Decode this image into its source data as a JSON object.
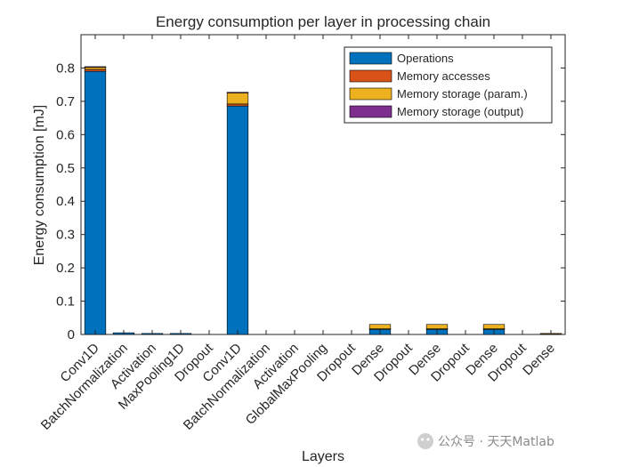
{
  "chart_data": {
    "type": "bar",
    "stacked": true,
    "title": "Energy consumption per layer in processing chain",
    "xlabel": "Layers",
    "ylabel": "Energy consumption [mJ]",
    "ylim": [
      0,
      0.9
    ],
    "yticks": [
      0,
      0.1,
      0.2,
      0.3,
      0.4,
      0.5,
      0.6,
      0.7,
      0.8
    ],
    "ytick_labels": [
      "0",
      "0.1",
      "0.2",
      "0.3",
      "0.4",
      "0.5",
      "0.6",
      "0.7",
      "0.8"
    ],
    "grid": false,
    "legend_position": "top-right",
    "categories": [
      "Conv1D",
      "BatchNormalization",
      "Activation",
      "MaxPooling1D",
      "Dropout",
      "Conv1D",
      "BatchNormalization",
      "Activation",
      "GlobalMaxPooling",
      "Dropout",
      "Dense",
      "Dropout",
      "Dense",
      "Dropout",
      "Dense",
      "Dropout",
      "Dense"
    ],
    "series": [
      {
        "name": "Operations",
        "color": "#0072BD",
        "values": [
          0.79,
          0.005,
          0.003,
          0.003,
          0,
          0.686,
          0,
          0,
          0,
          0,
          0.016,
          0,
          0.016,
          0,
          0.016,
          0,
          0.002
        ]
      },
      {
        "name": "Memory accesses",
        "color": "#D95319",
        "values": [
          0.006,
          0,
          0,
          0,
          0,
          0.006,
          0,
          0,
          0,
          0,
          0.001,
          0,
          0.001,
          0,
          0.001,
          0,
          0
        ]
      },
      {
        "name": "Memory storage (param.)",
        "color": "#EDB120",
        "values": [
          0.007,
          0,
          0,
          0,
          0,
          0.034,
          0,
          0,
          0,
          0,
          0.013,
          0,
          0.013,
          0,
          0.013,
          0,
          0.001
        ]
      },
      {
        "name": "Memory storage (output)",
        "color": "#7E2F8E",
        "values": [
          0.001,
          0,
          0,
          0,
          0,
          0.001,
          0,
          0,
          0,
          0,
          0,
          0,
          0,
          0,
          0,
          0,
          0
        ]
      }
    ]
  },
  "watermark": {
    "text": "公众号 · 天天Matlab"
  }
}
